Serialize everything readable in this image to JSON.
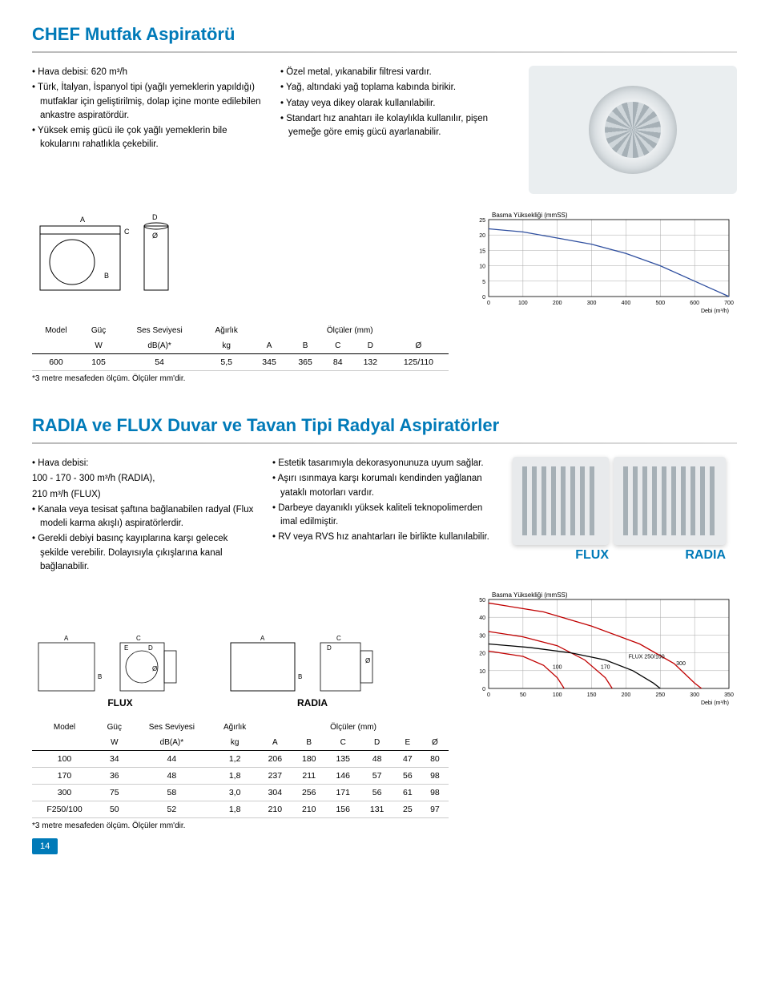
{
  "page_number": "14",
  "chef": {
    "title": "CHEF Mutfak Aspiratörü",
    "col1": [
      "• Hava debisi: 620 m³/h",
      "• Türk, İtalyan, İspanyol tipi (yağlı yemeklerin yapıldığı) mutfaklar için geliştirilmiş, dolap içine monte edilebilen ankastre aspiratördür.",
      "• Yüksek emiş gücü ile çok yağlı yemeklerin bile kokularını rahatlıkla çekebilir."
    ],
    "col2": [
      "• Özel metal, yıkanabilir filtresi vardır.",
      "• Yağ, altındaki yağ toplama kabında birikir.",
      "• Yatay veya dikey olarak kullanılabilir.",
      "• Standart hız anahtarı ile kolaylıkla kullanılır, pişen yemeğe göre emiş gücü ayarlanabilir."
    ],
    "chart": {
      "title": "Basma Yüksekliği (mmSS)",
      "y_ticks": [
        0,
        5,
        10,
        15,
        20,
        25
      ],
      "x_ticks": [
        0,
        100,
        200,
        300,
        400,
        500,
        600,
        700
      ],
      "x_label": "Debi (m³/h)",
      "curve": [
        [
          0,
          22
        ],
        [
          100,
          21
        ],
        [
          200,
          19
        ],
        [
          300,
          17
        ],
        [
          400,
          14
        ],
        [
          500,
          10
        ],
        [
          600,
          5
        ],
        [
          700,
          0
        ]
      ],
      "curve_color": "#2f4f9f",
      "grid_color": "#a8a8a8",
      "bg": "#ffffff"
    },
    "table": {
      "header_top": [
        "Model",
        "Güç",
        "Ses Seviyesi",
        "Ağırlık",
        "Ölçüler (mm)"
      ],
      "header_sub": [
        "",
        "W",
        "dB(A)*",
        "kg",
        "A",
        "B",
        "C",
        "D",
        "Ø"
      ],
      "rows": [
        [
          "600",
          "105",
          "54",
          "5,5",
          "345",
          "365",
          "84",
          "132",
          "125/110"
        ]
      ],
      "footnote": "*3 metre mesafeden ölçüm. Ölçüler mm'dir."
    }
  },
  "radia": {
    "title": "RADIA ve FLUX Duvar ve Tavan Tipi Radyal Aspiratörler",
    "label_flux": "FLUX",
    "label_radia": "RADIA",
    "col1": [
      "• Hava debisi:",
      "  100 - 170 - 300 m³/h (RADIA),",
      "  210 m³/h (FLUX)",
      "• Kanala veya tesisat şaftına bağlanabilen radyal (Flux modeli karma akışlı) aspiratörlerdir.",
      "• Gerekli debiyi basınç kayıplarına karşı gelecek şekilde verebilir. Dolayısıyla çıkışlarına kanal bağlanabilir."
    ],
    "col2": [
      "• Estetik tasarımıyla dekorasyonunuza uyum sağlar.",
      "• Aşırı ısınmaya karşı korumalı kendinden yağlanan yataklı motorları vardır.",
      "• Darbeye dayanıklı yüksek kaliteli teknopolimerden imal edilmiştir.",
      "• RV veya RVS hız anahtarları ile birlikte kullanılabilir."
    ],
    "chart": {
      "title": "Basma Yüksekliği (mmSS)",
      "y_ticks": [
        0,
        10,
        20,
        30,
        40,
        50
      ],
      "x_ticks": [
        0,
        50,
        100,
        150,
        200,
        250,
        300,
        350
      ],
      "x_label": "Debi (m³/h)",
      "curve_labels": [
        {
          "text": "100",
          "x": 100,
          "y": 11
        },
        {
          "text": "170",
          "x": 170,
          "y": 11
        },
        {
          "text": "300",
          "x": 280,
          "y": 13
        },
        {
          "text": "FLUX 250/100",
          "x": 230,
          "y": 17
        }
      ],
      "curves": [
        {
          "color": "#c00000",
          "points": [
            [
              0,
              21
            ],
            [
              50,
              18
            ],
            [
              80,
              13
            ],
            [
              100,
              6
            ],
            [
              110,
              0
            ]
          ]
        },
        {
          "color": "#c00000",
          "points": [
            [
              0,
              32
            ],
            [
              50,
              29
            ],
            [
              100,
              24
            ],
            [
              140,
              16
            ],
            [
              170,
              6
            ],
            [
              180,
              0
            ]
          ]
        },
        {
          "color": "#c00000",
          "points": [
            [
              0,
              48
            ],
            [
              80,
              43
            ],
            [
              150,
              35
            ],
            [
              220,
              25
            ],
            [
              270,
              14
            ],
            [
              300,
              3
            ],
            [
              310,
              0
            ]
          ]
        },
        {
          "color": "#000000",
          "points": [
            [
              0,
              25
            ],
            [
              60,
              23
            ],
            [
              120,
              20
            ],
            [
              170,
              16
            ],
            [
              210,
              10
            ],
            [
              240,
              3
            ],
            [
              250,
              0
            ]
          ]
        }
      ],
      "grid_color": "#a8a8a8",
      "bg": "#ffffff"
    },
    "table": {
      "header_top": [
        "Model",
        "Güç",
        "Ses Seviyesi",
        "Ağırlık",
        "Ölçüler (mm)"
      ],
      "header_sub": [
        "",
        "W",
        "dB(A)*",
        "kg",
        "A",
        "B",
        "C",
        "D",
        "E",
        "Ø"
      ],
      "rows": [
        [
          "100",
          "34",
          "44",
          "1,2",
          "206",
          "180",
          "135",
          "48",
          "47",
          "80"
        ],
        [
          "170",
          "36",
          "48",
          "1,8",
          "237",
          "211",
          "146",
          "57",
          "56",
          "98"
        ],
        [
          "300",
          "75",
          "58",
          "3,0",
          "304",
          "256",
          "171",
          "56",
          "61",
          "98"
        ],
        [
          "F250/100",
          "50",
          "52",
          "1,8",
          "210",
          "210",
          "156",
          "131",
          "25",
          "97"
        ]
      ],
      "footnote": "*3 metre mesafeden ölçüm. Ölçüler mm'dir."
    }
  }
}
